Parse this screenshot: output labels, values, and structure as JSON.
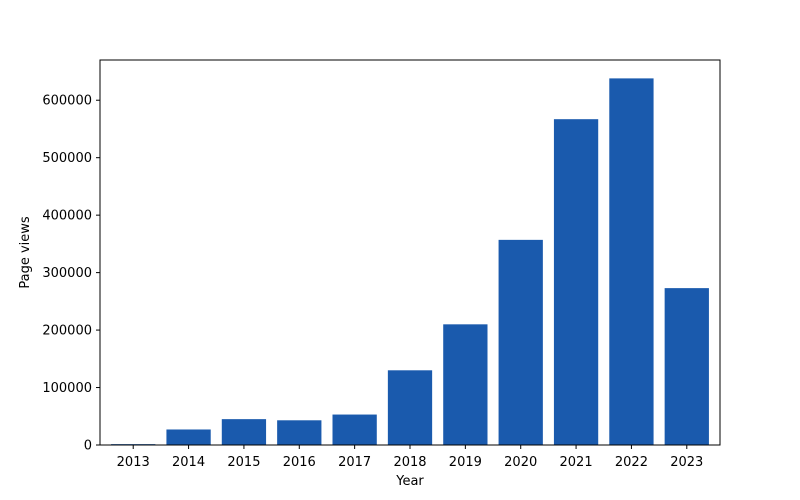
{
  "chart_data": {
    "type": "bar",
    "title": "",
    "xlabel": "Year",
    "ylabel": "Page views",
    "categories": [
      "2013",
      "2014",
      "2015",
      "2016",
      "2017",
      "2018",
      "2019",
      "2020",
      "2021",
      "2022",
      "2023"
    ],
    "values": [
      1500,
      27000,
      45000,
      43000,
      53000,
      130000,
      210000,
      357000,
      567000,
      638000,
      273000
    ],
    "yticks": [
      0,
      100000,
      200000,
      300000,
      400000,
      500000,
      600000
    ],
    "ylim": [
      0,
      670000
    ],
    "bar_color": "#1a5aad",
    "grid": false,
    "legend": "none"
  }
}
